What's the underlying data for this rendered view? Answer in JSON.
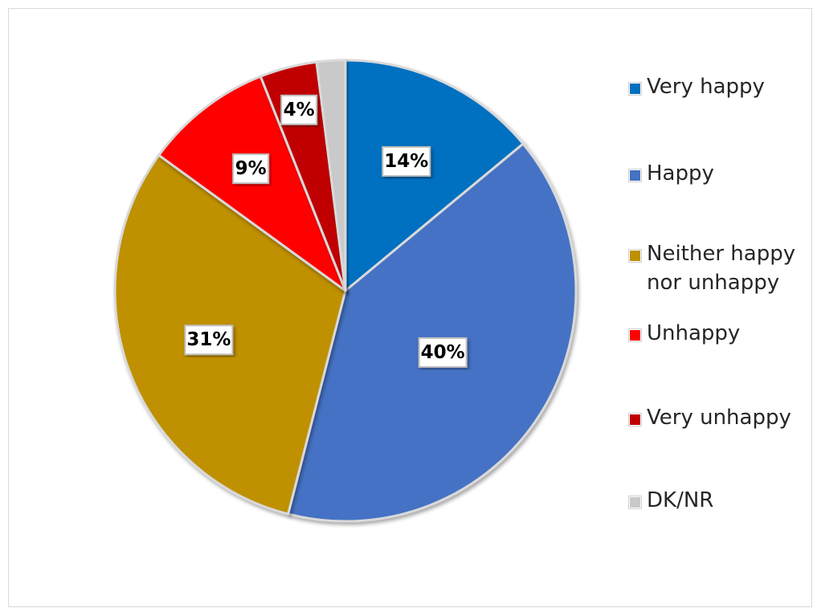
{
  "chart_data": {
    "type": "pie",
    "title": "",
    "start_angle_deg": 0,
    "direction": "clockwise",
    "slices": [
      {
        "name": "Very happy",
        "value": 14,
        "label": "14%",
        "color": "#0070c0"
      },
      {
        "name": "Happy",
        "value": 40,
        "label": "40%",
        "color": "#4472c4"
      },
      {
        "name": "Neither happy nor unhappy",
        "value": 31,
        "label": "31%",
        "color": "#bf9000"
      },
      {
        "name": "Unhappy",
        "value": 9,
        "label": "9%",
        "color": "#ff0000"
      },
      {
        "name": "Very unhappy",
        "value": 4,
        "label": "4%",
        "color": "#c00000"
      },
      {
        "name": "DK/NR",
        "value": 2,
        "label": "",
        "color": "#c9c9c9"
      }
    ],
    "legend_position": "right",
    "legend": [
      {
        "label": "Very happy",
        "color": "#0070c0"
      },
      {
        "label": "Happy",
        "color": "#4472c4"
      },
      {
        "label": "Neither happy\nnor unhappy",
        "color": "#bf9000"
      },
      {
        "label": "Unhappy",
        "color": "#ff0000"
      },
      {
        "label": "Very unhappy",
        "color": "#c00000"
      },
      {
        "label": "DK/NR",
        "color": "#c9c9c9"
      }
    ]
  }
}
